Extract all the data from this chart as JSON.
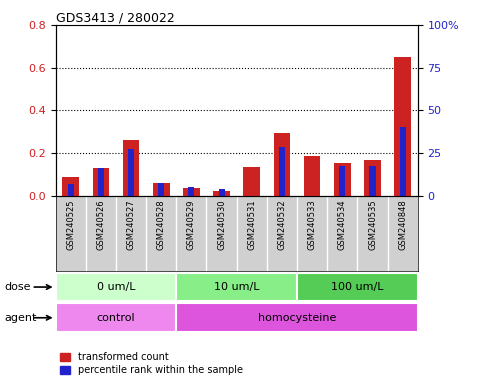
{
  "title": "GDS3413 / 280022",
  "samples": [
    "GSM240525",
    "GSM240526",
    "GSM240527",
    "GSM240528",
    "GSM240529",
    "GSM240530",
    "GSM240531",
    "GSM240532",
    "GSM240533",
    "GSM240534",
    "GSM240535",
    "GSM240848"
  ],
  "red_values": [
    0.09,
    0.13,
    0.26,
    0.06,
    0.035,
    0.025,
    0.135,
    0.295,
    0.185,
    0.155,
    0.17,
    0.65
  ],
  "blue_values": [
    0.055,
    0.13,
    0.22,
    0.06,
    0.04,
    0.03,
    0.0,
    0.23,
    0.0,
    0.14,
    0.14,
    0.32
  ],
  "dose_groups": [
    {
      "label": "0 um/L",
      "start": 0,
      "end": 4,
      "color": "#ccffcc"
    },
    {
      "label": "10 um/L",
      "start": 4,
      "end": 8,
      "color": "#88ee88"
    },
    {
      "label": "100 um/L",
      "start": 8,
      "end": 12,
      "color": "#55cc55"
    }
  ],
  "agent_groups": [
    {
      "label": "control",
      "start": 0,
      "end": 4,
      "color": "#ee88ee"
    },
    {
      "label": "homocysteine",
      "start": 4,
      "end": 12,
      "color": "#dd55dd"
    }
  ],
  "ylim_left": [
    0,
    0.8
  ],
  "ylim_right": [
    0,
    100
  ],
  "yticks_left": [
    0.0,
    0.2,
    0.4,
    0.6,
    0.8
  ],
  "yticks_right": [
    0,
    25,
    50,
    75,
    100
  ],
  "ytick_labels_right": [
    "0",
    "25",
    "50",
    "75",
    "100%"
  ],
  "red_color": "#cc2222",
  "blue_color": "#2222cc",
  "xtick_bg_color": "#d0d0d0",
  "xtick_line_color": "#aaaaaa"
}
